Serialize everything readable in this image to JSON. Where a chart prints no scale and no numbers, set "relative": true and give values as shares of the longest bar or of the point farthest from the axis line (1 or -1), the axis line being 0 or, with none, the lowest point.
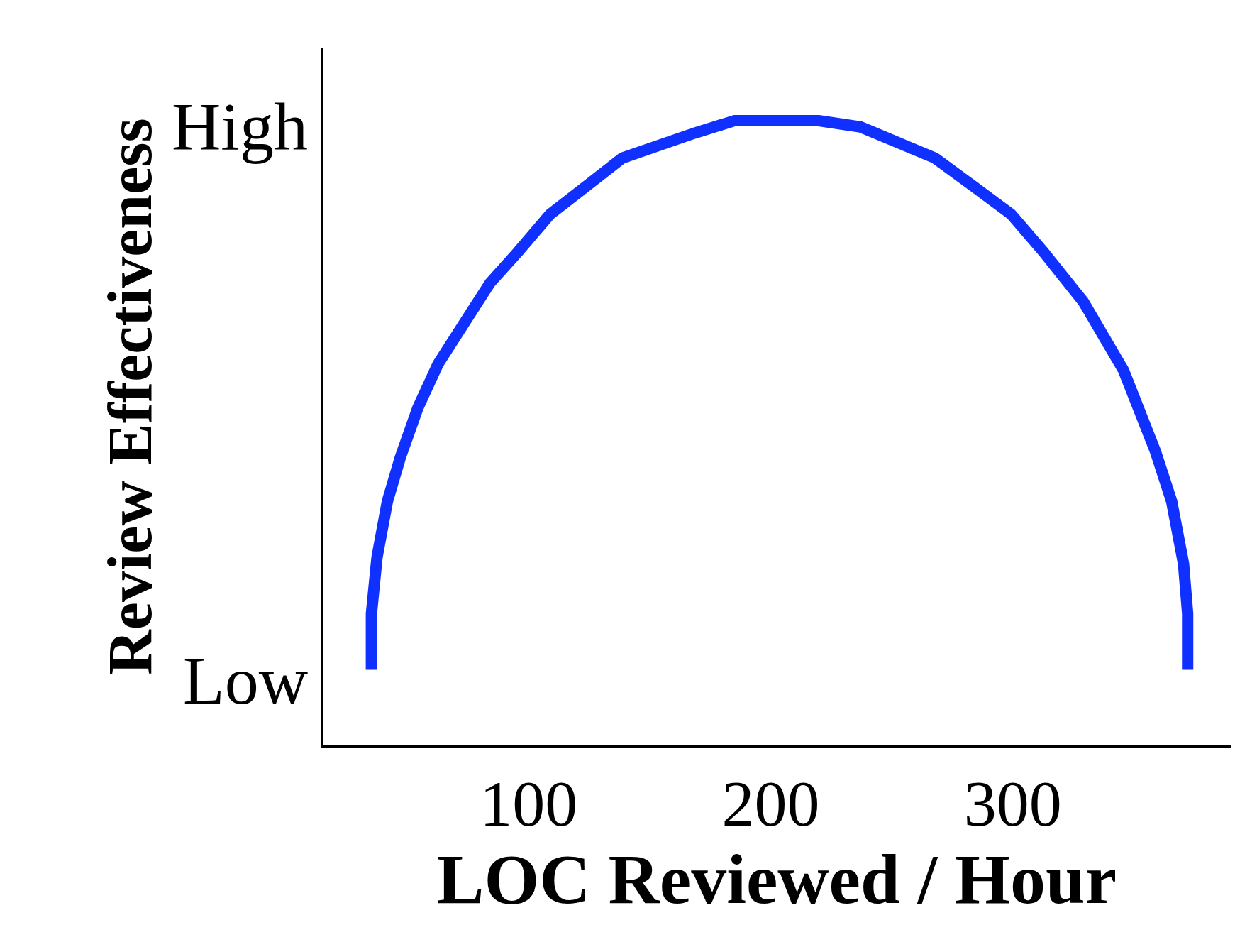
{
  "chart_data": {
    "type": "line",
    "xlabel": "LOC Reviewed / Hour",
    "ylabel": "Review Effectiveness",
    "annotations": [
      "High",
      "Low"
    ],
    "relative": true,
    "x": [
      35.1,
      35.1,
      37.4,
      41.7,
      47.0,
      54.3,
      62.6,
      75.8,
      84.1,
      95.7,
      108.9,
      122.2,
      138.7,
      168.5,
      185.1,
      202.6,
      219.9,
      237.1,
      267.9,
      285.4,
      299.3,
      312.6,
      329.1,
      345.7,
      358.9,
      365.6,
      370.5,
      372.2,
      372.2
    ],
    "series": [
      {
        "color": "#1030ff",
        "values": [
          0.12,
          0.21,
          0.3,
          0.39,
          0.46,
          0.54,
          0.61,
          0.69,
          0.74,
          0.79,
          0.85,
          0.89,
          0.94,
          0.98,
          1.0,
          1.0,
          1.0,
          0.99,
          0.94,
          0.89,
          0.85,
          0.79,
          0.71,
          0.6,
          0.47,
          0.39,
          0.29,
          0.21,
          0.12
        ]
      }
    ],
    "xlim": [
      15,
      390
    ],
    "xticks": [
      100,
      200,
      300
    ],
    "legend": false,
    "marker": "none",
    "line_style": "solid"
  }
}
